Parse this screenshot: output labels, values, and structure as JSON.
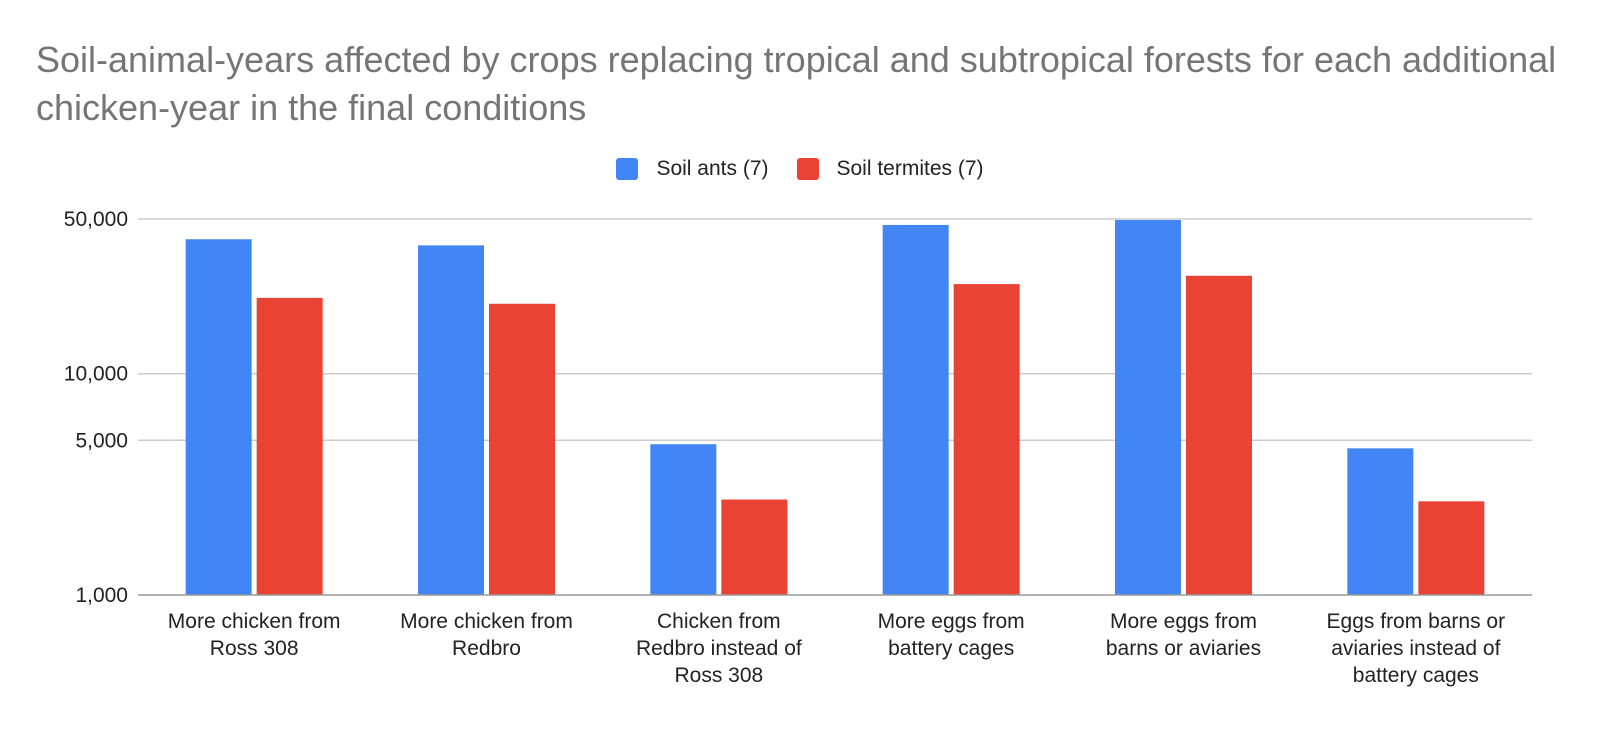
{
  "colors": {
    "soil_ants": "#4285F4",
    "soil_termites": "#EA4335",
    "gridline": "#cccccc",
    "axis_line": "#999999",
    "title": "#757575",
    "text": "#222222"
  },
  "chart_data": {
    "type": "bar",
    "title": "Soil-animal-years affected by crops replacing tropical and subtropical forests for each additional chicken-year in the final conditions",
    "xlabel": "",
    "ylabel": "",
    "yscale": "log",
    "ylim": [
      1000,
      50000
    ],
    "yticks": [
      1000,
      5000,
      10000,
      50000
    ],
    "ytick_labels": [
      "1,000",
      "5,000",
      "10,000",
      "50,000"
    ],
    "grid": true,
    "legend_position": "top",
    "categories": [
      [
        "More chicken from",
        "Ross 308"
      ],
      [
        "More chicken from",
        "Redbro"
      ],
      [
        "Chicken from",
        "Redbro instead of",
        "Ross 308"
      ],
      [
        "More eggs from",
        "battery cages"
      ],
      [
        "More eggs from",
        "barns or aviaries"
      ],
      [
        "Eggs from barns or",
        "aviaries instead of",
        "battery cages"
      ]
    ],
    "series": [
      {
        "name": "Soil ants (7)",
        "color": "#4285F4",
        "values": [
          40500,
          38000,
          4800,
          47000,
          49500,
          4600
        ]
      },
      {
        "name": "Soil termites (7)",
        "color": "#EA4335",
        "values": [
          22000,
          20700,
          2700,
          25400,
          27700,
          2650
        ]
      }
    ]
  }
}
